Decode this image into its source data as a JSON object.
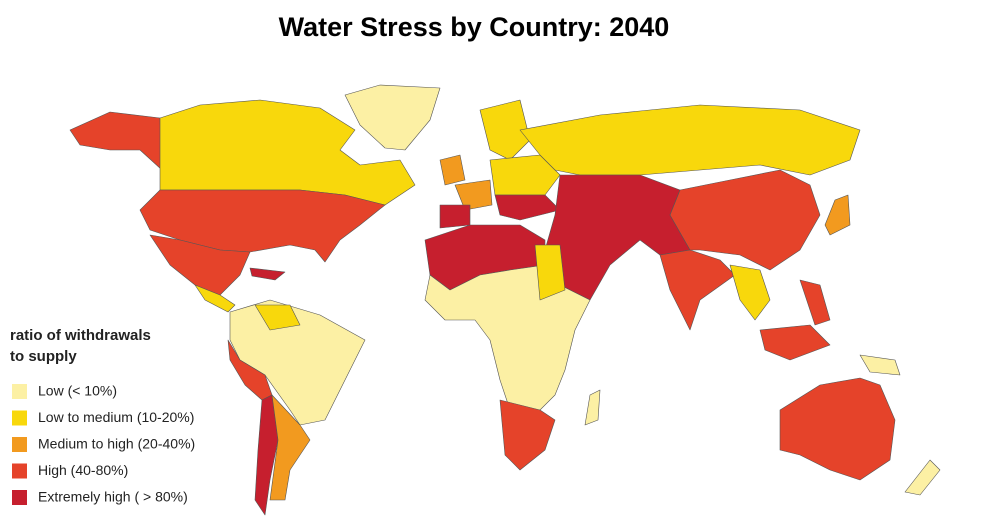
{
  "header": {
    "title": "Water Stress by Country: 2040"
  },
  "legend": {
    "title_lines": [
      "ratio of withdrawals",
      "to supply"
    ],
    "items": [
      {
        "label": "Low (< 10%)",
        "color": "#fcf0a4"
      },
      {
        "label": "Low to medium (10-20%)",
        "color": "#f8d80c"
      },
      {
        "label": "Medium to high  (20-40%)",
        "color": "#f29a1f"
      },
      {
        "label": "High (40-80%)",
        "color": "#e5432a"
      },
      {
        "label": "Extremely high ( > 80%)",
        "color": "#c61f2e"
      }
    ]
  }
}
